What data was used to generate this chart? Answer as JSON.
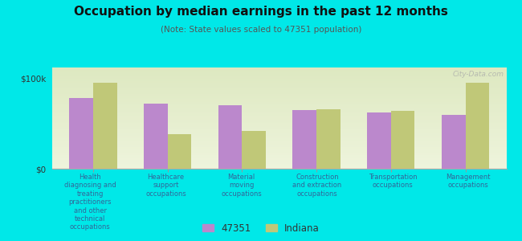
{
  "title": "Occupation by median earnings in the past 12 months",
  "subtitle": "(Note: State values scaled to 47351 population)",
  "background_color": "#00e8e8",
  "plot_bg_top": "#dde8c0",
  "plot_bg_bottom": "#eef4dc",
  "categories": [
    "Health\ndiagnosing and\ntreating\npractitioners\nand other\ntechnical\noccupations",
    "Healthcare\nsupport\noccupations",
    "Material\nmoving\noccupations",
    "Construction\nand extraction\noccupations",
    "Transportation\noccupations",
    "Management\noccupations"
  ],
  "values_47351": [
    78000,
    72000,
    70000,
    65000,
    62000,
    60000
  ],
  "values_indiana": [
    95000,
    38000,
    42000,
    66000,
    64000,
    95000
  ],
  "color_47351": "#bb88cc",
  "color_indiana": "#c0c878",
  "yticks": [
    0,
    100000
  ],
  "ytick_labels": [
    "$0",
    "$100k"
  ],
  "ylim": [
    0,
    112000
  ],
  "legend_label_1": "47351",
  "legend_label_2": "Indiana",
  "watermark": "City-Data.com"
}
